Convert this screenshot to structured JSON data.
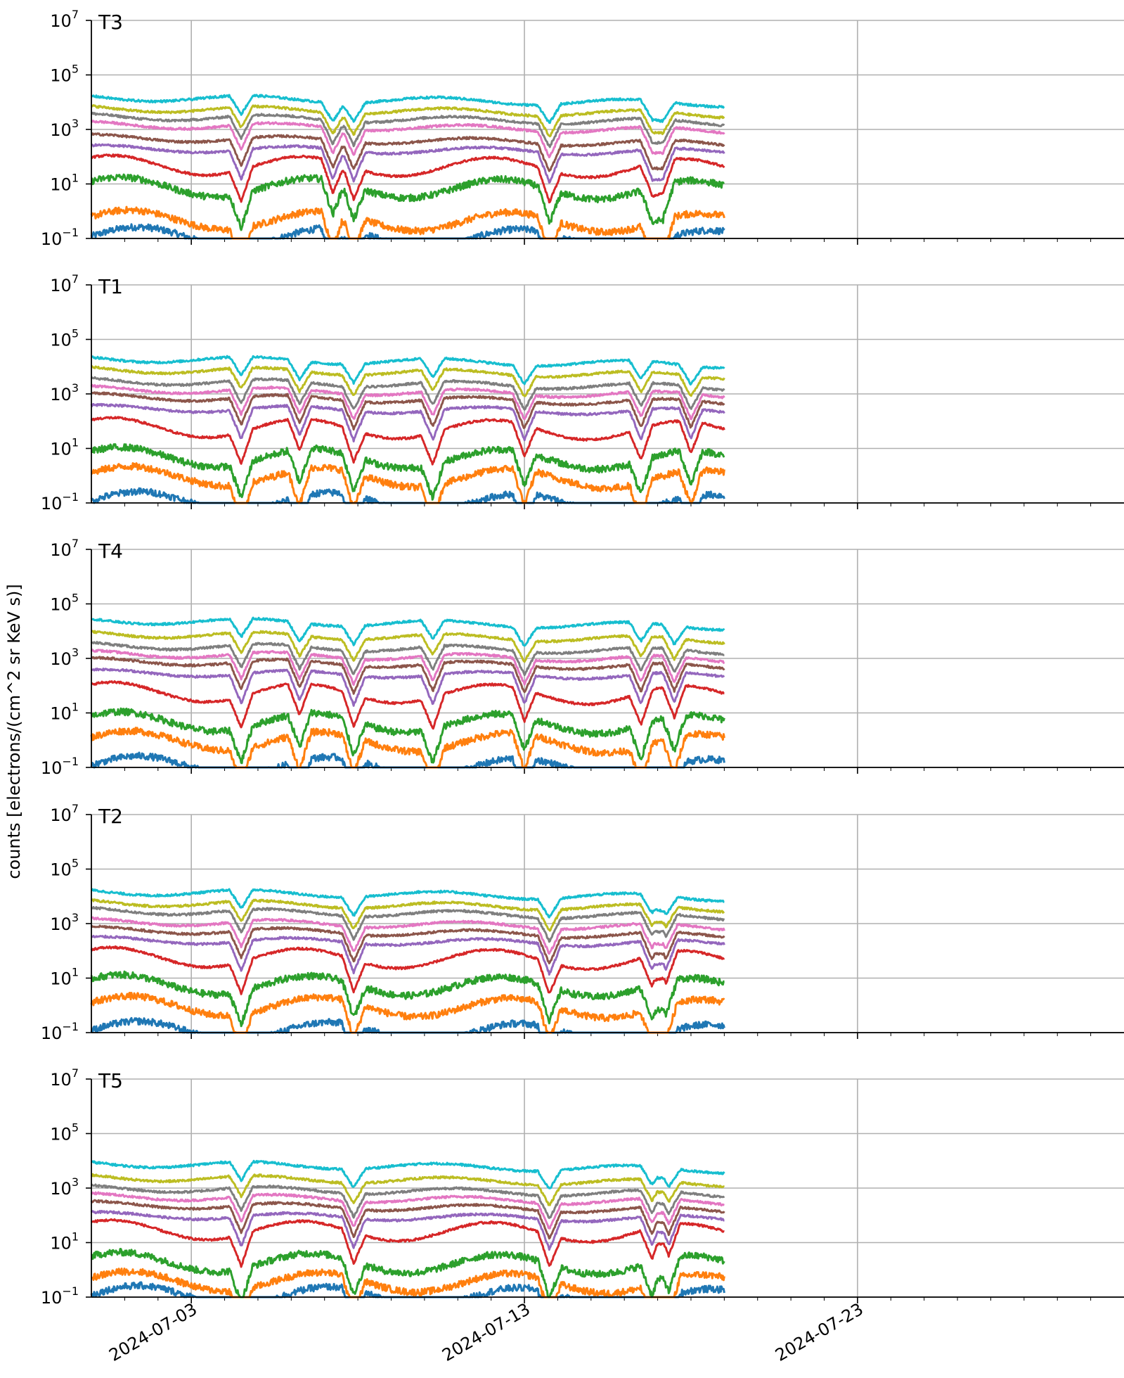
{
  "chart_data": {
    "type": "line",
    "ylabel": "counts [electrons/(cm^2 sr KeV s)]",
    "yscale": "log",
    "ylim": [
      0.1,
      10000000
    ],
    "ytick_values": [
      0.1,
      10,
      1000,
      100000,
      10000000
    ],
    "ytick_labels": [
      {
        "base": "10",
        "exp": "−1"
      },
      {
        "base": "10",
        "exp": "1"
      },
      {
        "base": "10",
        "exp": "3"
      },
      {
        "base": "10",
        "exp": "5"
      },
      {
        "base": "10",
        "exp": "7"
      }
    ],
    "xlim": [
      "2024-06-30T00:00",
      "2024-07-31T00:00"
    ],
    "xtick_labels": [
      "2024-07-03",
      "2024-07-13",
      "2024-07-23"
    ],
    "data_end": "2024-07-19T00:00",
    "grid": true,
    "series_colors": [
      "#1f77b4",
      "#ff7f0e",
      "#2ca02c",
      "#d62728",
      "#9467bd",
      "#8c564b",
      "#e377c2",
      "#7f7f7f",
      "#bcbd22",
      "#17becf"
    ],
    "panels": [
      {
        "title": "T3",
        "series_levels": [
          0.12,
          0.5,
          8,
          50,
          200,
          500,
          1500,
          3000,
          6000,
          15000
        ],
        "dip_dates": [
          "2024-07-04T12:00",
          "2024-07-07T06:00",
          "2024-07-07T21:00",
          "2024-07-13T18:00",
          "2024-07-16T20:00",
          "2024-07-17T04:00"
        ]
      },
      {
        "title": "T1",
        "series_levels": [
          0.12,
          1,
          5,
          60,
          300,
          800,
          1500,
          3000,
          8000,
          20000
        ],
        "dip_dates": [
          "2024-07-04T12:00",
          "2024-07-06T06:00",
          "2024-07-07T21:00",
          "2024-07-10T06:00",
          "2024-07-13T00:00",
          "2024-07-16T12:00",
          "2024-07-18T00:00"
        ]
      },
      {
        "title": "T4",
        "series_levels": [
          0.12,
          1,
          5,
          60,
          300,
          800,
          1500,
          3000,
          8000,
          25000
        ],
        "dip_dates": [
          "2024-07-04T12:00",
          "2024-07-06T06:00",
          "2024-07-07T21:00",
          "2024-07-10T06:00",
          "2024-07-13T00:00",
          "2024-07-16T12:00",
          "2024-07-17T12:00"
        ]
      },
      {
        "title": "T2",
        "series_levels": [
          0.12,
          1,
          6,
          60,
          250,
          600,
          1200,
          3000,
          6000,
          15000
        ],
        "dip_dates": [
          "2024-07-04T12:00",
          "2024-07-07T21:00",
          "2024-07-13T18:00",
          "2024-07-16T20:00",
          "2024-07-17T06:00"
        ]
      },
      {
        "title": "T5",
        "series_levels": [
          0.12,
          0.4,
          2,
          30,
          100,
          250,
          500,
          1000,
          2500,
          8000
        ],
        "dip_dates": [
          "2024-07-04T12:00",
          "2024-07-07T21:00",
          "2024-07-13T18:00",
          "2024-07-16T20:00",
          "2024-07-17T08:00"
        ]
      }
    ]
  }
}
